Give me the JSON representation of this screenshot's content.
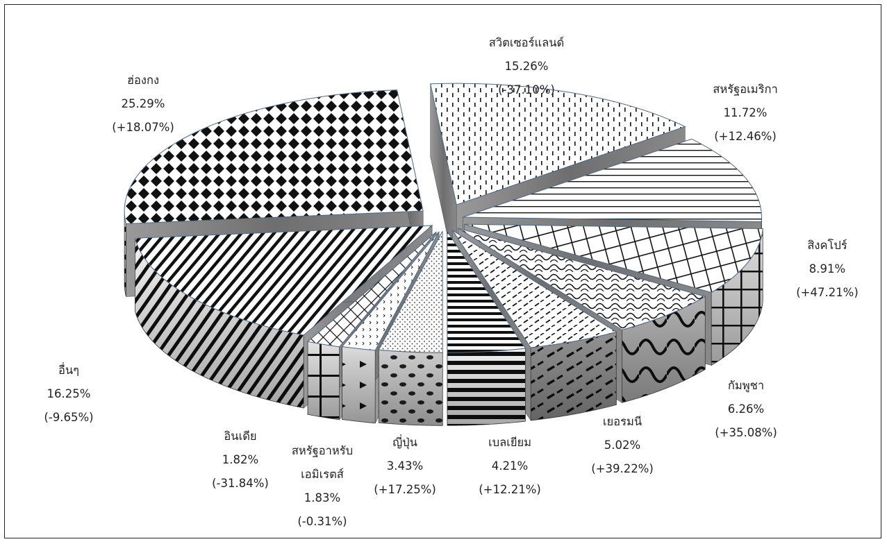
{
  "chart_data": {
    "type": "pie",
    "title": "",
    "slices": [
      {
        "name": "สวิตเซอร์แลนด์",
        "value": 15.26,
        "pct": "15.26%",
        "change": "(-37.10%)",
        "pattern": "vdash"
      },
      {
        "name": "สหรัฐอเมริกา",
        "value": 11.72,
        "pct": "11.72%",
        "change": "(+12.46%)",
        "pattern": "hline"
      },
      {
        "name": "สิงคโปร์",
        "value": 8.91,
        "pct": "8.91%",
        "change": "(+47.21%)",
        "pattern": "grid"
      },
      {
        "name": "กัมพูชา",
        "value": 6.26,
        "pct": "6.26%",
        "change": "(+35.08%)",
        "pattern": "scale"
      },
      {
        "name": "เยอรมนี",
        "value": 5.02,
        "pct": "5.02%",
        "change": "(+39.22%)",
        "pattern": "diagdash"
      },
      {
        "name": "เบลเยียม",
        "value": 4.21,
        "pct": "4.21%",
        "change": "(+12.21%)",
        "pattern": "hstripe"
      },
      {
        "name": "ญี่ปุ่น",
        "value": 3.43,
        "pct": "3.43%",
        "change": "(+17.25%)",
        "pattern": "dots"
      },
      {
        "name": "สหรัฐอาหรับเอมิเรตส์",
        "value": 1.83,
        "pct": "1.83%",
        "change": "(-0.31%)",
        "pattern": "smallchev"
      },
      {
        "name": "อินเดีย",
        "value": 1.82,
        "pct": "1.82%",
        "change": "(-31.84%)",
        "pattern": "cross"
      },
      {
        "name": "อื่นๆ",
        "value": 16.25,
        "pct": "16.25%",
        "change": "(-9.65%)",
        "pattern": "diagstripe"
      },
      {
        "name": "ฮ่องกง",
        "value": 25.29,
        "pct": "25.29%",
        "change": "(+18.07%)",
        "pattern": "checker"
      }
    ],
    "labels": [
      {
        "lines": [
          "สวิตเซอร์แลนด์",
          "15.26%",
          "(-37.10%)"
        ],
        "anchor": "top"
      },
      {
        "lines": [
          "สหรัฐอเมริกา",
          "11.72%",
          "(+12.46%)"
        ],
        "anchor": "top-right"
      },
      {
        "lines": [
          "สิงคโปร์",
          "8.91%",
          "(+47.21%)"
        ],
        "anchor": "right"
      },
      {
        "lines": [
          "กัมพูชา",
          "6.26%",
          "(+35.08%)"
        ],
        "anchor": "bottom-right"
      },
      {
        "lines": [
          "เยอรมนี",
          "5.02%",
          "(+39.22%)"
        ],
        "anchor": "bottom"
      },
      {
        "lines": [
          "เบลเยียม",
          "4.21%",
          "(+12.21%)"
        ],
        "anchor": "bottom"
      },
      {
        "lines": [
          "ญี่ปุ่น",
          "3.43%",
          "(+17.25%)"
        ],
        "anchor": "bottom"
      },
      {
        "lines": [
          "สหรัฐอาหรับ",
          "เอมิเรตส์",
          "1.83%",
          "(-0.31%)"
        ],
        "anchor": "bottom"
      },
      {
        "lines": [
          "อินเดีย",
          "1.82%",
          "(-31.84%)"
        ],
        "anchor": "bottom"
      },
      {
        "lines": [
          "อื่นๆ",
          "16.25%",
          "(-9.65%)"
        ],
        "anchor": "left"
      },
      {
        "lines": [
          "ฮ่องกง",
          "25.29%",
          "(+18.07%)"
        ],
        "anchor": "top-left"
      }
    ],
    "style": "3d exploded pie, black-and-white pattern fills",
    "legend": "none"
  }
}
